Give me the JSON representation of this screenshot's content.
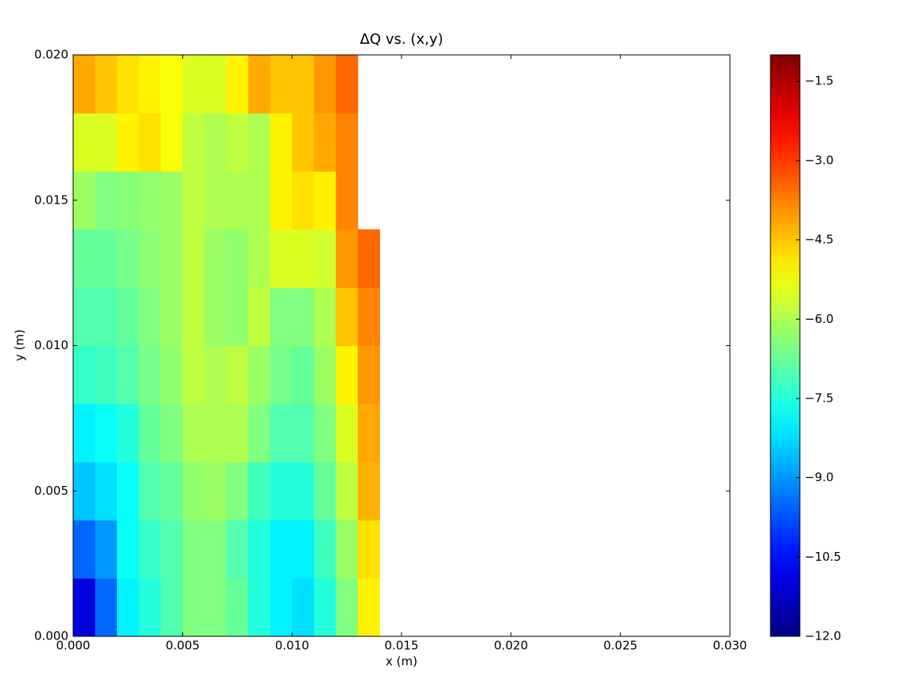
{
  "chart_data": {
    "type": "heatmap",
    "title": "ΔQ vs. (x,y)",
    "x_label": "x (m)",
    "y_label": "y (m)",
    "colormap": "jet",
    "xlim": [
      0,
      0.03
    ],
    "ylim": [
      0,
      0.02
    ],
    "clim": [
      -12,
      -1
    ],
    "xticks": [
      {
        "value": 0,
        "label": "0.000"
      },
      {
        "value": 0.005,
        "label": "0.005"
      },
      {
        "value": 0.01,
        "label": "0.010"
      },
      {
        "value": 0.015,
        "label": "0.015"
      },
      {
        "value": 0.02,
        "label": "0.020"
      },
      {
        "value": 0.025,
        "label": "0.025"
      },
      {
        "value": 0.03,
        "label": "0.030"
      }
    ],
    "yticks": [
      {
        "value": 0,
        "label": "0.000"
      },
      {
        "value": 0.005,
        "label": "0.005"
      },
      {
        "value": 0.01,
        "label": "0.010"
      },
      {
        "value": 0.015,
        "label": "0.015"
      },
      {
        "value": 0.02,
        "label": "0.020"
      }
    ],
    "cticks": [
      {
        "value": -1.5,
        "label": "−1.5"
      },
      {
        "value": -3,
        "label": "−3.0"
      },
      {
        "value": -4.5,
        "label": "−4.5"
      },
      {
        "value": -6,
        "label": "−6.0"
      },
      {
        "value": -7.5,
        "label": "−7.5"
      },
      {
        "value": -9,
        "label": "−9.0"
      },
      {
        "value": -10.5,
        "label": "−10.5"
      },
      {
        "value": -12,
        "label": "−12.0"
      }
    ],
    "xbins": [
      0,
      0.001,
      0.002,
      0.003,
      0.004,
      0.005,
      0.006,
      0.007,
      0.008,
      0.009,
      0.01,
      0.011,
      0.012,
      0.013,
      0.014,
      0.015
    ],
    "ybins": [
      0,
      0.002,
      0.004,
      0.006,
      0.008,
      0.01,
      0.012,
      0.014,
      0.016,
      0.018,
      0.02
    ],
    "z": [
      [
        -11,
        -9.5,
        -8,
        -7.5,
        -7,
        -6.5,
        -6.5,
        -6.8,
        -7.5,
        -8,
        -8.2,
        -7.5,
        -6.5,
        -5,
        null
      ],
      [
        -9.5,
        -9,
        -7.8,
        -7.3,
        -7,
        -6.5,
        -6.5,
        -7,
        -7.5,
        -8,
        -8,
        -7.2,
        -6.2,
        -4.8,
        null
      ],
      [
        -8.5,
        -8.2,
        -7.8,
        -7,
        -6.8,
        -6.3,
        -6.2,
        -6.5,
        -7.2,
        -7.5,
        -7.5,
        -6.8,
        -5.8,
        -4.3,
        null
      ],
      [
        -8,
        -7.8,
        -7.5,
        -6.8,
        -6.5,
        -6,
        -6,
        -6,
        -6.5,
        -7,
        -7,
        -6.5,
        -5.5,
        -4.2,
        null
      ],
      [
        -7.3,
        -7.2,
        -7,
        -6.6,
        -6.3,
        -5.8,
        -6,
        -5.8,
        -6.2,
        -6.6,
        -6.8,
        -6.2,
        -5,
        -4,
        null
      ],
      [
        -7,
        -7,
        -6.8,
        -6.5,
        -6.2,
        -5.8,
        -6.2,
        -6.3,
        -5.8,
        -6.5,
        -6.5,
        -6,
        -4.5,
        -3.8,
        null
      ],
      [
        -6.8,
        -6.8,
        -6.6,
        -6.4,
        -6.2,
        -5.8,
        -6.2,
        -6.3,
        -6,
        -5.5,
        -5.5,
        -5.6,
        -4,
        -3.5,
        null
      ],
      [
        -6.2,
        -6.5,
        -6.4,
        -6.3,
        -6.2,
        -5.8,
        -6,
        -6,
        -6,
        -5,
        -4.8,
        -5,
        -3.8,
        null,
        null
      ],
      [
        -5.5,
        -5.5,
        -5,
        -4.8,
        -5.2,
        -5.8,
        -6,
        -5.8,
        -6,
        -5,
        -4.5,
        -4.2,
        -3.8,
        null,
        null
      ],
      [
        -4.2,
        -4.5,
        -4.8,
        -5,
        -5.2,
        -5.5,
        -5.5,
        -5,
        -4.2,
        -4.5,
        -4.5,
        -4,
        -3.5,
        null,
        null
      ]
    ]
  }
}
